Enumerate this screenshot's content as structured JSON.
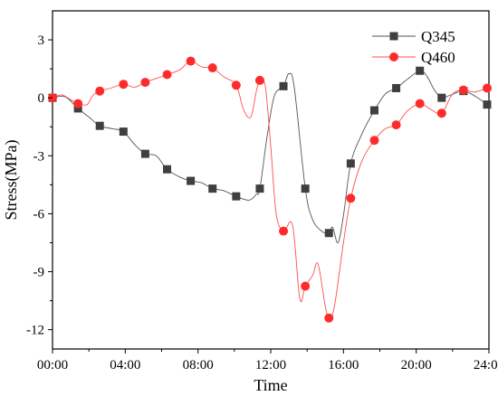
{
  "chart_data": {
    "type": "line",
    "xlabel": "Time",
    "ylabel": "Stress(MPa)",
    "xlim": [
      0,
      24
    ],
    "ylim": [
      -13,
      4.5
    ],
    "x_tick_values": [
      0,
      4,
      8,
      12,
      16,
      20,
      24
    ],
    "x_tick_labels": [
      "00:00",
      "04:00",
      "08:00",
      "12:00",
      "16:00",
      "20:00",
      "24:00"
    ],
    "y_tick_values": [
      3,
      0,
      -3,
      -6,
      -9,
      -12
    ],
    "y_tick_labels": [
      "3",
      "0",
      "-3",
      "-6",
      "-9",
      "-12"
    ],
    "grid": false,
    "legend_position": "top-right",
    "series": [
      {
        "name": "Q345",
        "color": "#3f3f3f",
        "line_color": "#555555",
        "marker": "square",
        "markers": [
          [
            0,
            0
          ],
          [
            1.4,
            -0.55
          ],
          [
            2.6,
            -1.45
          ],
          [
            3.9,
            -1.75
          ],
          [
            5.1,
            -2.9
          ],
          [
            6.3,
            -3.7
          ],
          [
            7.6,
            -4.3
          ],
          [
            8.8,
            -4.7
          ],
          [
            10.1,
            -5.1
          ],
          [
            11.4,
            -4.7
          ],
          [
            12.7,
            0.6
          ],
          [
            13.9,
            -4.7
          ],
          [
            15.2,
            -7.0
          ],
          [
            16.4,
            -3.4
          ],
          [
            17.7,
            -0.65
          ],
          [
            18.9,
            0.5
          ],
          [
            20.2,
            1.4
          ],
          [
            21.4,
            0.0
          ],
          [
            22.6,
            0.35
          ],
          [
            23.9,
            -0.35
          ]
        ],
        "curve": [
          [
            0,
            0
          ],
          [
            0.7,
            0.05
          ],
          [
            1.4,
            -0.55
          ],
          [
            2.0,
            -1.0
          ],
          [
            2.6,
            -1.45
          ],
          [
            3.3,
            -1.6
          ],
          [
            3.9,
            -1.75
          ],
          [
            4.5,
            -2.4
          ],
          [
            5.1,
            -2.9
          ],
          [
            5.7,
            -3.0
          ],
          [
            6.3,
            -3.7
          ],
          [
            7.0,
            -4.1
          ],
          [
            7.6,
            -4.3
          ],
          [
            8.2,
            -4.4
          ],
          [
            8.8,
            -4.7
          ],
          [
            9.4,
            -4.8
          ],
          [
            10.1,
            -5.1
          ],
          [
            10.8,
            -5.3
          ],
          [
            11.2,
            -5.0
          ],
          [
            11.4,
            -4.7
          ],
          [
            11.8,
            -2.0
          ],
          [
            12.2,
            0.1
          ],
          [
            12.7,
            0.6
          ],
          [
            13.0,
            1.25
          ],
          [
            13.3,
            0.5
          ],
          [
            13.9,
            -4.7
          ],
          [
            14.3,
            -6.3
          ],
          [
            14.8,
            -6.9
          ],
          [
            15.2,
            -7.0
          ],
          [
            15.4,
            -6.7
          ],
          [
            15.7,
            -7.5
          ],
          [
            16.0,
            -6.1
          ],
          [
            16.4,
            -3.4
          ],
          [
            17.0,
            -1.9
          ],
          [
            17.7,
            -0.65
          ],
          [
            18.3,
            0.2
          ],
          [
            18.9,
            0.5
          ],
          [
            19.5,
            0.95
          ],
          [
            20.2,
            1.4
          ],
          [
            20.6,
            1.1
          ],
          [
            21.0,
            0.4
          ],
          [
            21.4,
            0.0
          ],
          [
            21.9,
            0.15
          ],
          [
            22.6,
            0.35
          ],
          [
            23.3,
            0.05
          ],
          [
            23.9,
            -0.35
          ]
        ]
      },
      {
        "name": "Q460",
        "color": "#ff2b2b",
        "line_color": "#ff4d4d",
        "marker": "circle",
        "markers": [
          [
            0,
            0
          ],
          [
            1.4,
            -0.3
          ],
          [
            2.6,
            0.35
          ],
          [
            3.9,
            0.7
          ],
          [
            5.1,
            0.8
          ],
          [
            6.3,
            1.2
          ],
          [
            7.6,
            1.9
          ],
          [
            8.8,
            1.55
          ],
          [
            10.1,
            0.65
          ],
          [
            11.4,
            0.9
          ],
          [
            12.7,
            -6.9
          ],
          [
            13.9,
            -9.75
          ],
          [
            15.2,
            -11.4
          ],
          [
            16.4,
            -5.2
          ],
          [
            17.7,
            -2.2
          ],
          [
            18.9,
            -1.4
          ],
          [
            20.2,
            -0.3
          ],
          [
            21.4,
            -0.8
          ],
          [
            22.6,
            0.4
          ],
          [
            23.9,
            0.5
          ]
        ],
        "curve": [
          [
            0,
            0
          ],
          [
            0.5,
            0.15
          ],
          [
            1.0,
            -0.1
          ],
          [
            1.4,
            -0.3
          ],
          [
            1.9,
            -0.35
          ],
          [
            2.2,
            0.1
          ],
          [
            2.6,
            0.35
          ],
          [
            3.2,
            0.5
          ],
          [
            3.9,
            0.7
          ],
          [
            4.5,
            0.55
          ],
          [
            5.1,
            0.8
          ],
          [
            5.7,
            1.0
          ],
          [
            6.3,
            1.2
          ],
          [
            7.0,
            1.45
          ],
          [
            7.6,
            1.9
          ],
          [
            8.2,
            1.6
          ],
          [
            8.8,
            1.55
          ],
          [
            9.4,
            1.1
          ],
          [
            10.1,
            0.65
          ],
          [
            10.5,
            -0.6
          ],
          [
            10.9,
            -1.0
          ],
          [
            11.2,
            0.3
          ],
          [
            11.4,
            0.9
          ],
          [
            11.7,
            0.6
          ],
          [
            12.0,
            -2.5
          ],
          [
            12.3,
            -6.0
          ],
          [
            12.7,
            -6.9
          ],
          [
            13.2,
            -6.6
          ],
          [
            13.6,
            -10.4
          ],
          [
            13.9,
            -9.75
          ],
          [
            14.3,
            -9.2
          ],
          [
            14.6,
            -8.6
          ],
          [
            15.0,
            -10.8
          ],
          [
            15.2,
            -11.4
          ],
          [
            15.5,
            -10.8
          ],
          [
            16.0,
            -7.5
          ],
          [
            16.4,
            -5.2
          ],
          [
            17.0,
            -3.3
          ],
          [
            17.7,
            -2.2
          ],
          [
            18.3,
            -1.6
          ],
          [
            18.9,
            -1.4
          ],
          [
            19.5,
            -0.7
          ],
          [
            20.2,
            -0.3
          ],
          [
            20.8,
            -0.6
          ],
          [
            21.4,
            -0.8
          ],
          [
            22.0,
            0.2
          ],
          [
            22.6,
            0.4
          ],
          [
            23.2,
            0.3
          ],
          [
            23.9,
            0.5
          ]
        ]
      }
    ]
  }
}
